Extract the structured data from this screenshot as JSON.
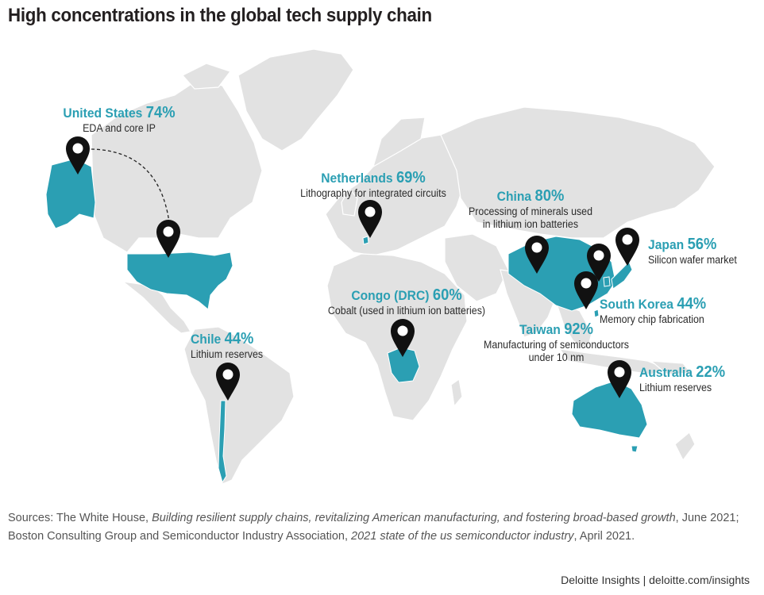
{
  "title": "High concentrations in the global tech supply chain",
  "colors": {
    "land": "#e2e2e2",
    "highlight": "#2b9fb3",
    "pin": "#111111",
    "accent_text": "#2b9fb3"
  },
  "callouts": [
    {
      "id": "us",
      "country": "United States",
      "pct": "74%",
      "desc": "EDA and core IP"
    },
    {
      "id": "nl",
      "country": "Netherlands",
      "pct": "69%",
      "desc": "Lithography for integrated circuits"
    },
    {
      "id": "cn",
      "country": "China",
      "pct": "80%",
      "desc": "Processing of minerals used",
      "desc2": "in lithium ion batteries"
    },
    {
      "id": "jp",
      "country": "Japan",
      "pct": "56%",
      "desc": "Silicon wafer market"
    },
    {
      "id": "cd",
      "country": "Congo (DRC)",
      "pct": "60%",
      "desc": "Cobalt (used in lithium ion batteries)"
    },
    {
      "id": "kr",
      "country": "South Korea",
      "pct": "44%",
      "desc": "Memory chip fabrication"
    },
    {
      "id": "tw",
      "country": "Taiwan",
      "pct": "92%",
      "desc": "Manufacturing of semiconductors",
      "desc2": "under 10 nm"
    },
    {
      "id": "cl",
      "country": "Chile",
      "pct": "44%",
      "desc": "Lithium reserves"
    },
    {
      "id": "au",
      "country": "Australia",
      "pct": "22%",
      "desc": "Lithium reserves"
    }
  ],
  "sources": {
    "lead": "Sources: The White House, ",
    "title1": "Building resilient supply chains, revitalizing American manufacturing, and fostering broad-based growth",
    "mid": ", June 2021; Boston Consulting Group and Semiconductor Industry Association, ",
    "title2": "2021 state of the us semiconductor industry",
    "end": ", April 2021."
  },
  "footer": "Deloitte Insights | deloitte.com/insights",
  "pins": [
    "alaska-pin",
    "usa-pin",
    "netherlands-pin",
    "china-pin",
    "korea-pin",
    "japan-pin",
    "taiwan-pin",
    "congo-pin",
    "chile-pin",
    "australia-pin"
  ]
}
